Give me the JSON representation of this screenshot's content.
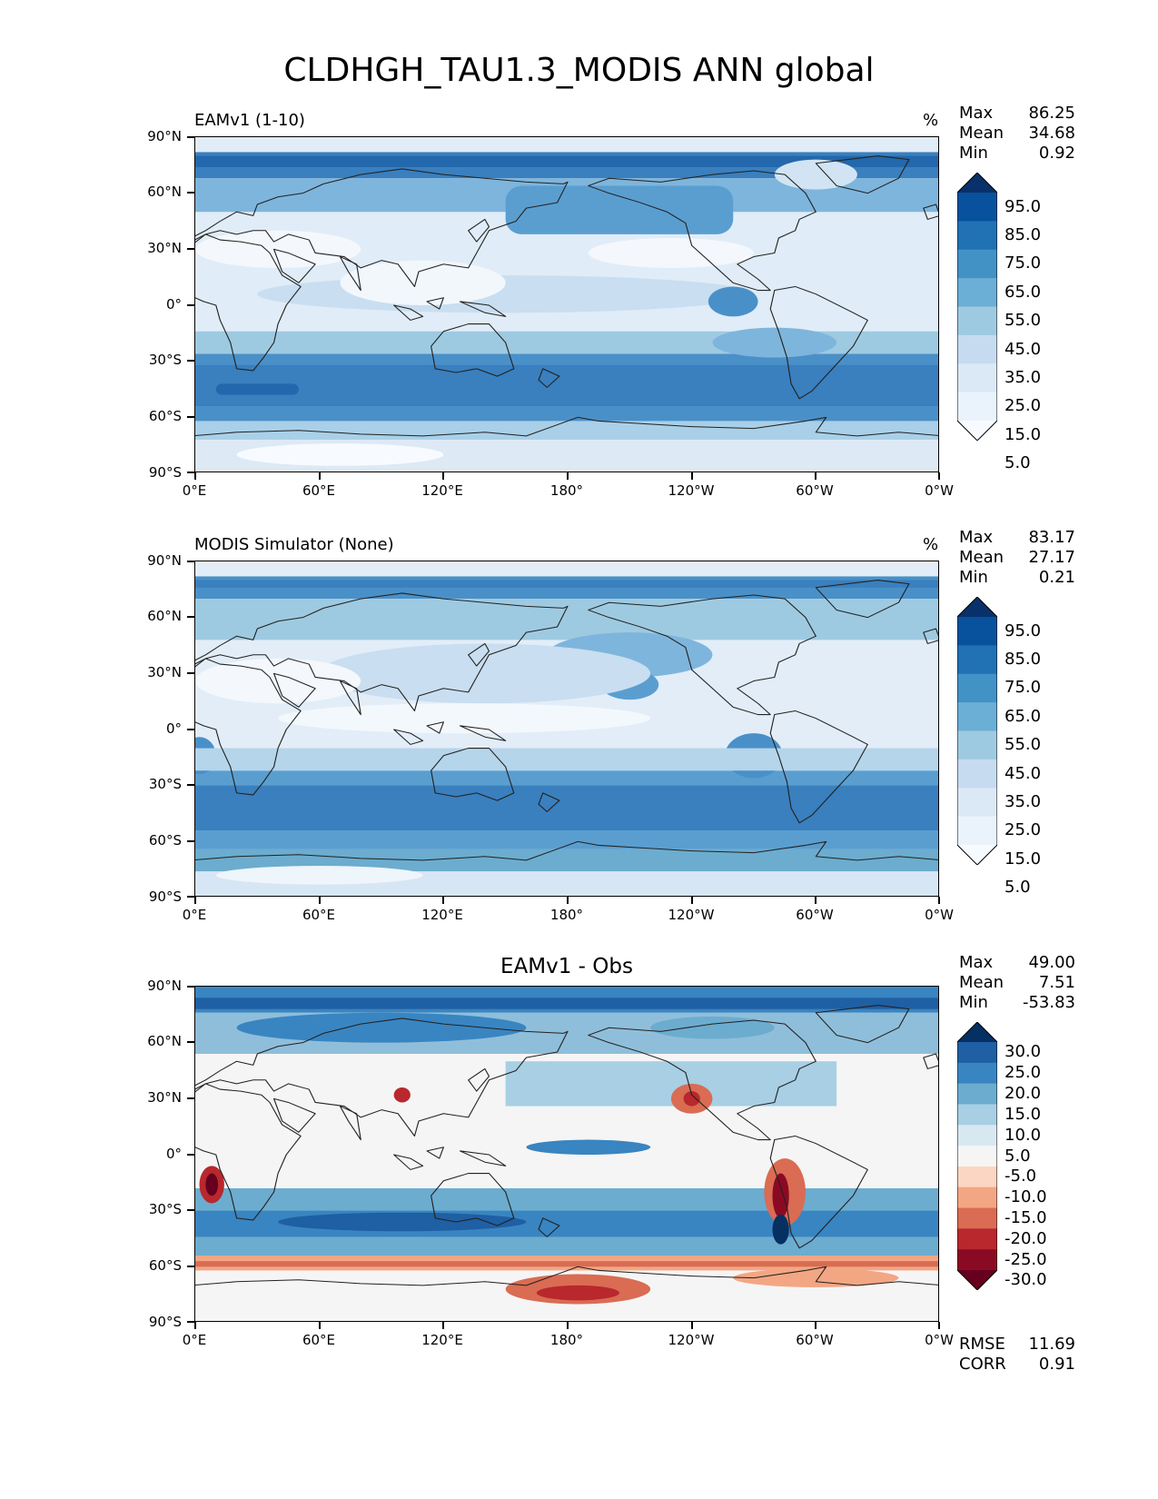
{
  "page": {
    "title": "CLDHGH_TAU1.3_MODIS ANN global"
  },
  "axes": {
    "lat_labels": [
      "90°N",
      "60°N",
      "30°N",
      "0°",
      "30°S",
      "60°S",
      "90°S"
    ],
    "lon_labels": [
      "0°E",
      "60°E",
      "120°E",
      "180°",
      "120°W",
      "60°W",
      "0°W"
    ]
  },
  "panels": [
    {
      "title": "EAMv1 (1-10)",
      "units": "%",
      "stats": {
        "max_label": "Max",
        "max": "86.25",
        "mean_label": "Mean",
        "mean": "34.68",
        "min_label": "Min",
        "min": "0.92"
      },
      "colorbar": {
        "labels": [
          "95.0",
          "85.0",
          "75.0",
          "65.0",
          "55.0",
          "45.0",
          "35.0",
          "25.0",
          "15.0",
          "5.0"
        ],
        "colors": [
          "#08306b",
          "#08519c",
          "#2171b5",
          "#4292c6",
          "#6baed6",
          "#9ecae1",
          "#c6dbef",
          "#dbe9f6",
          "#eaf3fb",
          "#f7fbff"
        ]
      }
    },
    {
      "title": "MODIS Simulator (None)",
      "units": "%",
      "stats": {
        "max_label": "Max",
        "max": "83.17",
        "mean_label": "Mean",
        "mean": "27.17",
        "min_label": "Min",
        "min": "0.21"
      },
      "colorbar": {
        "labels": [
          "95.0",
          "85.0",
          "75.0",
          "65.0",
          "55.0",
          "45.0",
          "35.0",
          "25.0",
          "15.0",
          "5.0"
        ],
        "colors": [
          "#08306b",
          "#08519c",
          "#2171b5",
          "#4292c6",
          "#6baed6",
          "#9ecae1",
          "#c6dbef",
          "#dbe9f6",
          "#eaf3fb",
          "#f7fbff"
        ]
      }
    },
    {
      "title": "EAMv1 - Obs",
      "units": "",
      "stats": {
        "max_label": "Max",
        "max": "49.00",
        "mean_label": "Mean",
        "mean": "7.51",
        "min_label": "Min",
        "min": "-53.83"
      },
      "extra": {
        "rmse_label": "RMSE",
        "rmse": "11.69",
        "corr_label": "CORR",
        "corr": "0.91"
      },
      "colorbar": {
        "labels": [
          "30.0",
          "25.0",
          "20.0",
          "15.0",
          "10.0",
          "5.0",
          "-5.0",
          "-10.0",
          "-15.0",
          "-20.0",
          "-25.0",
          "-30.0"
        ],
        "colors": [
          "#053061",
          "#1f5fa3",
          "#3985c1",
          "#6caccf",
          "#a8cfe3",
          "#d7e8f1",
          "#f5f5f5",
          "#fbd6c2",
          "#f3a683",
          "#d96c53",
          "#b8282d",
          "#8b0a23",
          "#67001f"
        ]
      }
    }
  ]
}
